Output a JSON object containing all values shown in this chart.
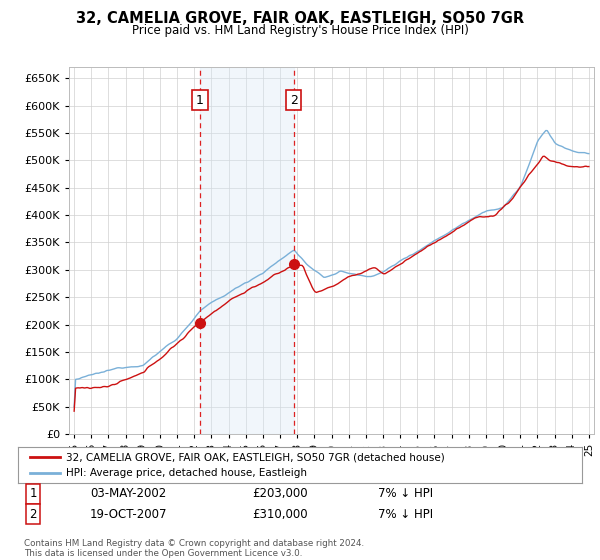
{
  "title": "32, CAMELIA GROVE, FAIR OAK, EASTLEIGH, SO50 7GR",
  "subtitle": "Price paid vs. HM Land Registry's House Price Index (HPI)",
  "ylabel_ticks": [
    0,
    50000,
    100000,
    150000,
    200000,
    250000,
    300000,
    350000,
    400000,
    450000,
    500000,
    550000,
    600000,
    650000
  ],
  "ylim": [
    0,
    670000
  ],
  "xlim_start": 1994.7,
  "xlim_end": 2025.3,
  "transaction1": {
    "date_label": "03-MAY-2002",
    "year": 2002.33,
    "price": 203000,
    "label": "1"
  },
  "transaction2": {
    "date_label": "19-OCT-2007",
    "year": 2007.79,
    "price": 310000,
    "label": "2"
  },
  "hpi_color": "#7ab0d8",
  "house_color": "#cc1111",
  "vline_color": "#dd2222",
  "shade_color": "#d8e8f5",
  "legend_house": "32, CAMELIA GROVE, FAIR OAK, EASTLEIGH, SO50 7GR (detached house)",
  "legend_hpi": "HPI: Average price, detached house, Eastleigh",
  "footer": "Contains HM Land Registry data © Crown copyright and database right 2024.\nThis data is licensed under the Open Government Licence v3.0.",
  "table_rows": [
    {
      "num": "1",
      "date": "03-MAY-2002",
      "price": "£203,000",
      "info": "7% ↓ HPI"
    },
    {
      "num": "2",
      "date": "19-OCT-2007",
      "price": "£310,000",
      "info": "7% ↓ HPI"
    }
  ]
}
